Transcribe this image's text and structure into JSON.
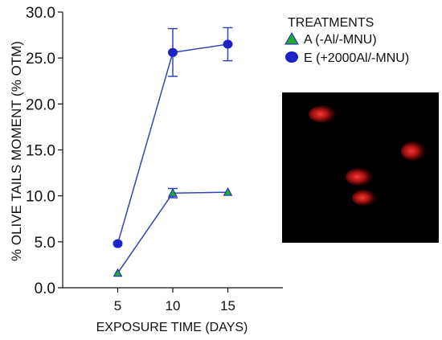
{
  "chart_data": {
    "type": "line",
    "xlabel": "EXPOSURE TIME (DAYS)",
    "ylabel": "% OLIVE TAILS MOMENT (% OTM)",
    "ylim": [
      0,
      30
    ],
    "xlim": [
      0,
      20
    ],
    "x": [
      5,
      10,
      15
    ],
    "x_tick_labels": [
      "5",
      "10",
      "15"
    ],
    "y_ticks": [
      0,
      5,
      10,
      15,
      20,
      25,
      30
    ],
    "y_tick_labels": [
      "0.0",
      "5.0",
      "10.0",
      "15.0",
      "20.0",
      "25.0",
      "30.0"
    ],
    "grid": false,
    "legend": {
      "title": "TREATMENTS",
      "placement": "top-right"
    },
    "series": [
      {
        "name": "A (-Al/-MNU)",
        "marker": "triangle",
        "marker_color": "#22aa33",
        "line_color": "#3344bb",
        "values": [
          1.6,
          10.3,
          10.4
        ],
        "error": [
          0,
          0.5,
          0
        ]
      },
      {
        "name": "E (+2000Al/-MNU)",
        "marker": "circle",
        "marker_color": "#1a22c8",
        "line_color": "#3344bb",
        "values": [
          4.8,
          25.6,
          26.5
        ],
        "error": [
          0,
          2.6,
          1.8
        ]
      }
    ],
    "inset_image": "comet-assay-micrograph",
    "colors": {
      "axis": "#111111",
      "inset_background": "#000000",
      "comet": "#ff2a2a"
    }
  }
}
